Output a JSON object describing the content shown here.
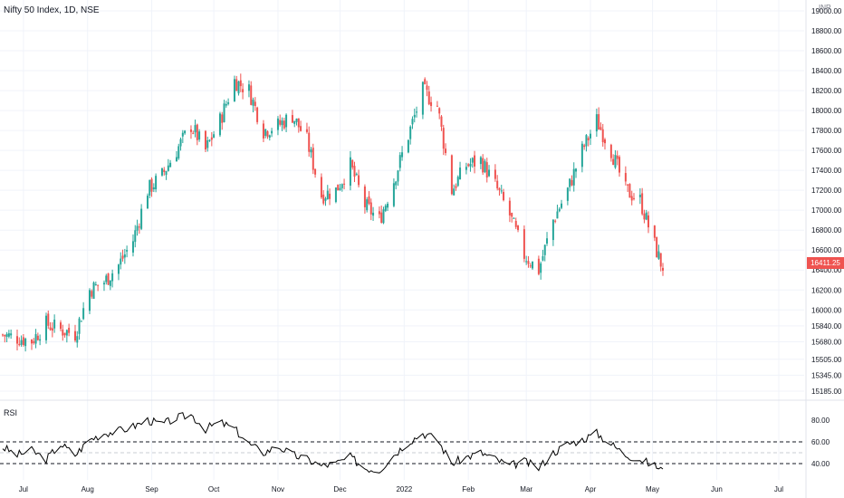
{
  "header": {
    "title": "Nifty 50 Index, 1D, NSE",
    "currency": "INR"
  },
  "indicator": {
    "label": "RSI"
  },
  "last_price": "16411.25",
  "colors": {
    "up": "#26a69a",
    "down": "#ef5350",
    "rsi_line": "#000000",
    "grid": "#f0f3fa",
    "axis_text": "#131722"
  },
  "chart_data": [
    {
      "type": "candlestick",
      "title": "Nifty 50 Index, 1D, NSE",
      "x_tick_labels": [
        "Jul",
        "Aug",
        "Sep",
        "Oct",
        "Nov",
        "Dec",
        "2022",
        "Feb",
        "Mar",
        "Apr",
        "May",
        "Jun",
        "Jul"
      ],
      "y_tick_labels": [
        "15185.00",
        "15345.00",
        "15505.00",
        "15680.00",
        "15840.00",
        "16000.00",
        "16200.00",
        "16400.00",
        "16600.00",
        "16800.00",
        "17000.00",
        "17200.00",
        "17400.00",
        "17600.00",
        "17800.00",
        "18000.00",
        "18200.00",
        "18400.00",
        "18600.00",
        "18800.00",
        "19000.00"
      ],
      "y_unit": "INR",
      "last_value": 16411.25,
      "close_path": [
        [
          "2021-06-21",
          15750
        ],
        [
          "2021-06-28",
          15720
        ],
        [
          "2021-07-05",
          15690
        ],
        [
          "2021-07-12",
          15860
        ],
        [
          "2021-07-19",
          15800
        ],
        [
          "2021-07-26",
          15760
        ],
        [
          "2021-08-02",
          16200
        ],
        [
          "2021-08-09",
          16280
        ],
        [
          "2021-08-16",
          16450
        ],
        [
          "2021-08-23",
          16700
        ],
        [
          "2021-08-30",
          17200
        ],
        [
          "2021-09-06",
          17350
        ],
        [
          "2021-09-13",
          17600
        ],
        [
          "2021-09-20",
          17850
        ],
        [
          "2021-09-27",
          17600
        ],
        [
          "2021-10-04",
          17900
        ],
        [
          "2021-10-11",
          18300
        ],
        [
          "2021-10-18",
          18200
        ],
        [
          "2021-10-25",
          17800
        ],
        [
          "2021-11-01",
          17850
        ],
        [
          "2021-11-08",
          17950
        ],
        [
          "2021-11-15",
          17700
        ],
        [
          "2021-11-22",
          17150
        ],
        [
          "2021-11-29",
          17200
        ],
        [
          "2021-12-06",
          17450
        ],
        [
          "2021-12-13",
          17050
        ],
        [
          "2021-12-20",
          16900
        ],
        [
          "2021-12-27",
          17300
        ],
        [
          "2022-01-03",
          17750
        ],
        [
          "2022-01-10",
          18200
        ],
        [
          "2022-01-17",
          18050
        ],
        [
          "2022-01-24",
          17200
        ],
        [
          "2022-01-31",
          17450
        ],
        [
          "2022-02-07",
          17500
        ],
        [
          "2022-02-14",
          17250
        ],
        [
          "2022-02-21",
          16950
        ],
        [
          "2022-02-28",
          16550
        ],
        [
          "2022-03-07",
          16400
        ],
        [
          "2022-03-14",
          16900
        ],
        [
          "2022-03-21",
          17200
        ],
        [
          "2022-03-28",
          17600
        ],
        [
          "2022-04-04",
          17900
        ],
        [
          "2022-04-11",
          17600
        ],
        [
          "2022-04-18",
          17200
        ],
        [
          "2022-04-25",
          17100
        ],
        [
          "2022-05-02",
          16650
        ],
        [
          "2022-05-06",
          16411.25
        ]
      ]
    },
    {
      "type": "line",
      "title": "RSI",
      "y_tick_labels": [
        "40.00",
        "60.00",
        "80.00"
      ],
      "bands": [
        40,
        50,
        60
      ],
      "values": [
        [
          "2021-06-21",
          55
        ],
        [
          "2021-06-28",
          48
        ],
        [
          "2021-07-05",
          52
        ],
        [
          "2021-07-12",
          44
        ],
        [
          "2021-07-19",
          58
        ],
        [
          "2021-07-26",
          48
        ],
        [
          "2021-08-02",
          62
        ],
        [
          "2021-08-09",
          68
        ],
        [
          "2021-08-16",
          70
        ],
        [
          "2021-08-23",
          74
        ],
        [
          "2021-08-30",
          80
        ],
        [
          "2021-09-06",
          76
        ],
        [
          "2021-09-13",
          82
        ],
        [
          "2021-09-20",
          85
        ],
        [
          "2021-09-27",
          72
        ],
        [
          "2021-10-04",
          78
        ],
        [
          "2021-10-11",
          72
        ],
        [
          "2021-10-18",
          58
        ],
        [
          "2021-10-25",
          50
        ],
        [
          "2021-11-01",
          56
        ],
        [
          "2021-11-08",
          48
        ],
        [
          "2021-11-15",
          44
        ],
        [
          "2021-11-22",
          38
        ],
        [
          "2021-11-29",
          40
        ],
        [
          "2021-12-06",
          46
        ],
        [
          "2021-12-13",
          36
        ],
        [
          "2021-12-20",
          34
        ],
        [
          "2021-12-27",
          48
        ],
        [
          "2022-01-03",
          60
        ],
        [
          "2022-01-10",
          68
        ],
        [
          "2022-01-17",
          62
        ],
        [
          "2022-01-24",
          40
        ],
        [
          "2022-01-31",
          46
        ],
        [
          "2022-02-07",
          50
        ],
        [
          "2022-02-14",
          44
        ],
        [
          "2022-02-21",
          38
        ],
        [
          "2022-02-28",
          42
        ],
        [
          "2022-03-07",
          36
        ],
        [
          "2022-03-14",
          50
        ],
        [
          "2022-03-21",
          58
        ],
        [
          "2022-03-28",
          62
        ],
        [
          "2022-04-04",
          68
        ],
        [
          "2022-04-11",
          58
        ],
        [
          "2022-04-18",
          48
        ],
        [
          "2022-04-25",
          44
        ],
        [
          "2022-05-02",
          38
        ],
        [
          "2022-05-06",
          35
        ]
      ]
    }
  ]
}
